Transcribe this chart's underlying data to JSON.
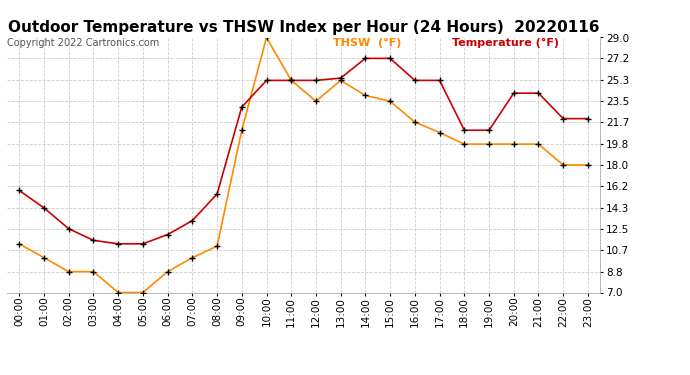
{
  "title": "Outdoor Temperature vs THSW Index per Hour (24 Hours)  20220116",
  "copyright": "Copyright 2022 Cartronics.com",
  "hours": [
    "00:00",
    "01:00",
    "02:00",
    "03:00",
    "04:00",
    "05:00",
    "06:00",
    "07:00",
    "08:00",
    "09:00",
    "10:00",
    "11:00",
    "12:00",
    "13:00",
    "14:00",
    "15:00",
    "16:00",
    "17:00",
    "18:00",
    "19:00",
    "20:00",
    "21:00",
    "22:00",
    "23:00"
  ],
  "temperature": [
    15.8,
    14.3,
    12.5,
    11.5,
    11.2,
    11.2,
    12.0,
    13.2,
    15.5,
    23.0,
    25.3,
    25.3,
    25.3,
    25.5,
    27.2,
    27.2,
    25.3,
    25.3,
    21.0,
    21.0,
    24.2,
    24.2,
    22.0,
    22.0
  ],
  "thsw": [
    11.2,
    10.0,
    8.8,
    8.8,
    7.0,
    7.0,
    8.8,
    10.0,
    11.0,
    21.0,
    29.0,
    25.3,
    23.5,
    25.3,
    24.0,
    23.5,
    21.7,
    20.8,
    19.8,
    19.8,
    19.8,
    19.8,
    18.0,
    18.0
  ],
  "temp_color": "#cc0000",
  "thsw_color": "#ff8800",
  "marker": "+",
  "marker_color": "black",
  "marker_size": 5,
  "marker_linewidth": 1.0,
  "line_width": 1.2,
  "ylim_min": 7.0,
  "ylim_max": 29.0,
  "yticks": [
    7.0,
    8.8,
    10.7,
    12.5,
    14.3,
    16.2,
    18.0,
    19.8,
    21.7,
    23.5,
    25.3,
    27.2,
    29.0
  ],
  "bg_color": "#ffffff",
  "grid_color": "#cccccc",
  "title_fontsize": 11,
  "copyright_fontsize": 7,
  "legend_fontsize": 8,
  "tick_fontsize": 7.5,
  "legend_thsw": "THSW  (°F)",
  "legend_temp": "Temperature (°F)"
}
